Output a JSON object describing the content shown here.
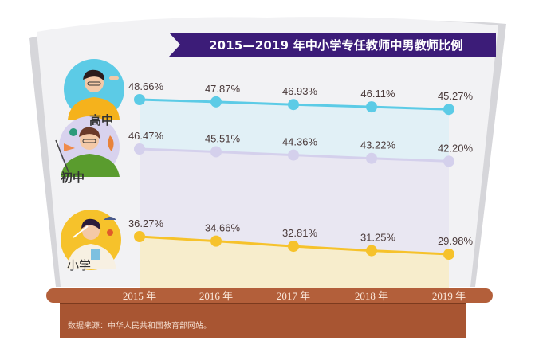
{
  "chart_data": {
    "type": "line",
    "title": "2015—2019 年中小学专任教师中男教师比例",
    "xlabel": "",
    "ylabel": "",
    "categories": [
      "2015 年",
      "2016 年",
      "2017 年",
      "2018 年",
      "2019 年"
    ],
    "x": [
      2015,
      2016,
      2017,
      2018,
      2019
    ],
    "series": [
      {
        "name": "高中",
        "color": "#5ccbe6",
        "values": [
          48.66,
          47.87,
          46.93,
          46.11,
          45.27
        ],
        "labels": [
          "48.66%",
          "47.87%",
          "46.93%",
          "46.11%",
          "45.27%"
        ]
      },
      {
        "name": "初中",
        "color": "#d4d0ec",
        "values": [
          46.47,
          45.51,
          44.36,
          43.22,
          42.2
        ],
        "labels": [
          "46.47%",
          "45.51%",
          "44.36%",
          "43.22%",
          "42.20%"
        ]
      },
      {
        "name": "小学",
        "color": "#f6c22b",
        "values": [
          36.27,
          34.66,
          32.81,
          31.25,
          29.98
        ],
        "labels": [
          "36.27%",
          "34.66%",
          "32.81%",
          "31.25%",
          "29.98%"
        ]
      }
    ],
    "unit": "%",
    "grid": false,
    "legend": "left (illustrated teacher icons)",
    "source": "数据来源：中华人民共和国教育部网站。"
  },
  "colors": {
    "banner": "#3c1c78",
    "platform": "#a85532",
    "platform_top": "#b35f3a",
    "book_page": "#f2f2f4",
    "book_edge": "#d4d4d8"
  },
  "icons": {
    "high": "teacher-high-school-icon",
    "middle": "teacher-middle-school-icon",
    "primary": "teacher-primary-school-icon"
  }
}
